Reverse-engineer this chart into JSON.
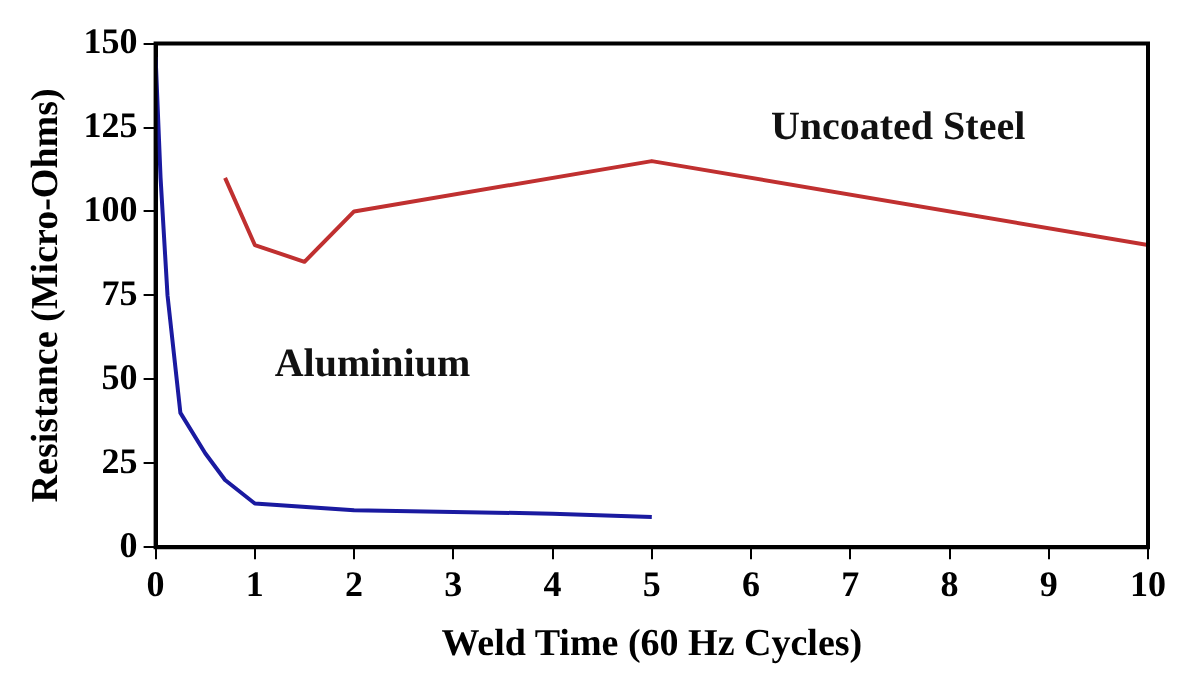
{
  "chart_data": {
    "type": "line",
    "xlabel": "Weld Time (60 Hz Cycles)",
    "ylabel": "Resistance (Micro-Ohms)",
    "xlim": [
      0,
      10
    ],
    "xticks": [
      0,
      1,
      2,
      3,
      4,
      5,
      6,
      7,
      8,
      9,
      10
    ],
    "ylim": [
      0,
      150
    ],
    "yticks": [
      0,
      25,
      50,
      75,
      100,
      125,
      150
    ],
    "grid": false,
    "legend": false,
    "marker": "none",
    "series": [
      {
        "name": "Uncoated Steel",
        "color": "#c03030",
        "x": [
          0.7,
          1,
          1.5,
          2,
          5,
          10
        ],
        "values": [
          110,
          90,
          85,
          100,
          115,
          90
        ]
      },
      {
        "name": "Aluminium",
        "color": "#1a1aa0",
        "x": [
          0,
          0.05,
          0.12,
          0.25,
          0.5,
          0.7,
          1,
          2,
          3,
          4,
          5
        ],
        "values": [
          146,
          110,
          75,
          40,
          28,
          20,
          13,
          11,
          10.5,
          10,
          9
        ]
      }
    ]
  }
}
